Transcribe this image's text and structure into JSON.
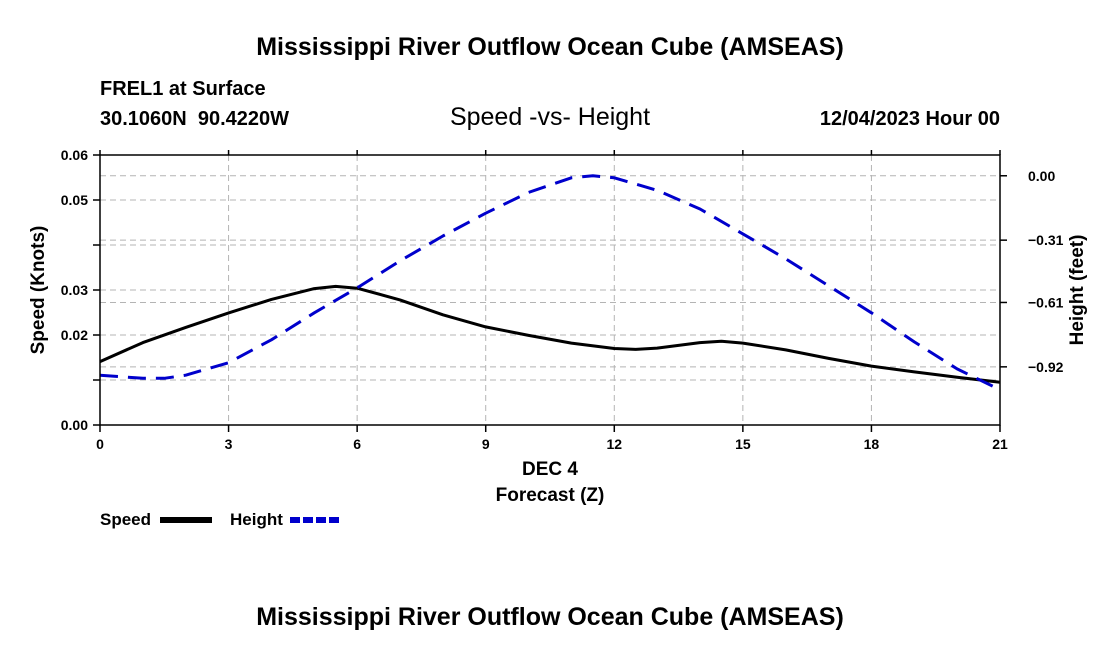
{
  "header": {
    "title": "Mississippi River Outflow Ocean Cube (AMSEAS)",
    "station": "FREL1 at Surface",
    "coords": "30.1060N  90.4220W",
    "chart_title": "Speed -vs- Height",
    "datetime": "12/04/2023 Hour 00",
    "footer_title": "Mississippi River Outflow Ocean Cube (AMSEAS)"
  },
  "chart_data": {
    "type": "line",
    "title": "Speed -vs- Height",
    "xlabel_top": "DEC 4",
    "xlabel": "Forecast (Z)",
    "ylabel": "Speed (Knots)",
    "y2label": "Height (feet)",
    "xlim": [
      0,
      21
    ],
    "ylim": [
      0,
      0.06
    ],
    "y2lim": [
      -1.2,
      0.1
    ],
    "x_ticks": [
      0,
      3,
      6,
      9,
      12,
      15,
      18,
      21
    ],
    "x_tick_labels": [
      "0",
      "3",
      "6",
      "9",
      "12",
      "15",
      "18",
      "21"
    ],
    "y_ticks": [
      0,
      0.01,
      0.02,
      0.03,
      0.04,
      0.05,
      0.06
    ],
    "y_tick_labels": [
      "0.00",
      "",
      "0.02",
      "0.03",
      "",
      "0.05",
      "0.06"
    ],
    "y2_ticks": [
      0.0,
      -0.31,
      -0.61,
      -0.92
    ],
    "y2_tick_labels": [
      "0.00",
      "−0.31",
      "−0.61",
      "−0.92"
    ],
    "grid": true,
    "legend_position": "bottom-left",
    "series": [
      {
        "name": "Speed",
        "axis": "left",
        "color": "#000000",
        "style": "solid",
        "x": [
          0,
          1,
          2,
          3,
          4,
          5,
          5.5,
          6,
          7,
          8,
          9,
          10,
          11,
          12,
          12.5,
          13,
          14,
          14.5,
          15,
          16,
          17,
          18,
          19,
          20,
          21
        ],
        "values": [
          0.0141,
          0.0183,
          0.0217,
          0.0249,
          0.0279,
          0.0303,
          0.0308,
          0.0304,
          0.0278,
          0.0245,
          0.0218,
          0.0199,
          0.0182,
          0.017,
          0.0168,
          0.0171,
          0.0183,
          0.0186,
          0.0182,
          0.0167,
          0.0148,
          0.0131,
          0.0118,
          0.0106,
          0.0095
        ]
      },
      {
        "name": "Height",
        "axis": "right",
        "color": "#0000cc",
        "style": "dashed",
        "x": [
          0,
          1,
          1.5,
          2,
          3,
          4,
          5,
          6,
          7,
          8,
          9,
          10,
          11,
          11.5,
          12,
          13,
          14,
          15,
          16,
          17,
          18,
          19,
          20,
          21
        ],
        "values": [
          -0.96,
          -0.975,
          -0.975,
          -0.96,
          -0.9,
          -0.79,
          -0.66,
          -0.54,
          -0.41,
          -0.29,
          -0.18,
          -0.08,
          -0.01,
          0.0,
          -0.01,
          -0.07,
          -0.16,
          -0.28,
          -0.4,
          -0.53,
          -0.66,
          -0.8,
          -0.93,
          -1.03
        ]
      }
    ],
    "legend": [
      {
        "label": "Speed",
        "color": "#000000",
        "style": "solid"
      },
      {
        "label": "Height",
        "color": "#0000cc",
        "style": "dashed"
      }
    ]
  }
}
